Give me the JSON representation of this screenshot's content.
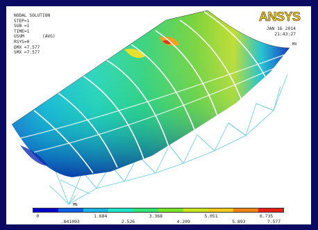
{
  "title": "NODAL SOLUTION",
  "info_lines": [
    "STEP=1",
    "SUB =1",
    "TIME=1",
    "USUM       (AVG)",
    "RSYS=0",
    "DMX =7.577",
    "SMX =7.577"
  ],
  "logo_text": "ANSYS",
  "date": "JAN 16 2014",
  "time": "21:43:27",
  "mx_label": "MX",
  "mn_label": "MN",
  "legend": {
    "colors": [
      "#0000c8",
      "#0a5fe6",
      "#19b4e6",
      "#1ee6c8",
      "#32e673",
      "#78e628",
      "#c8e61e",
      "#f0c819",
      "#f08214",
      "#e61e14"
    ],
    "top_ticks": [
      "0",
      "1.684",
      "3.368",
      "5.051",
      "6.735"
    ],
    "bottom_ticks": [
      ".841093",
      "2.526",
      "4.209",
      "5.893",
      "7.577"
    ]
  }
}
